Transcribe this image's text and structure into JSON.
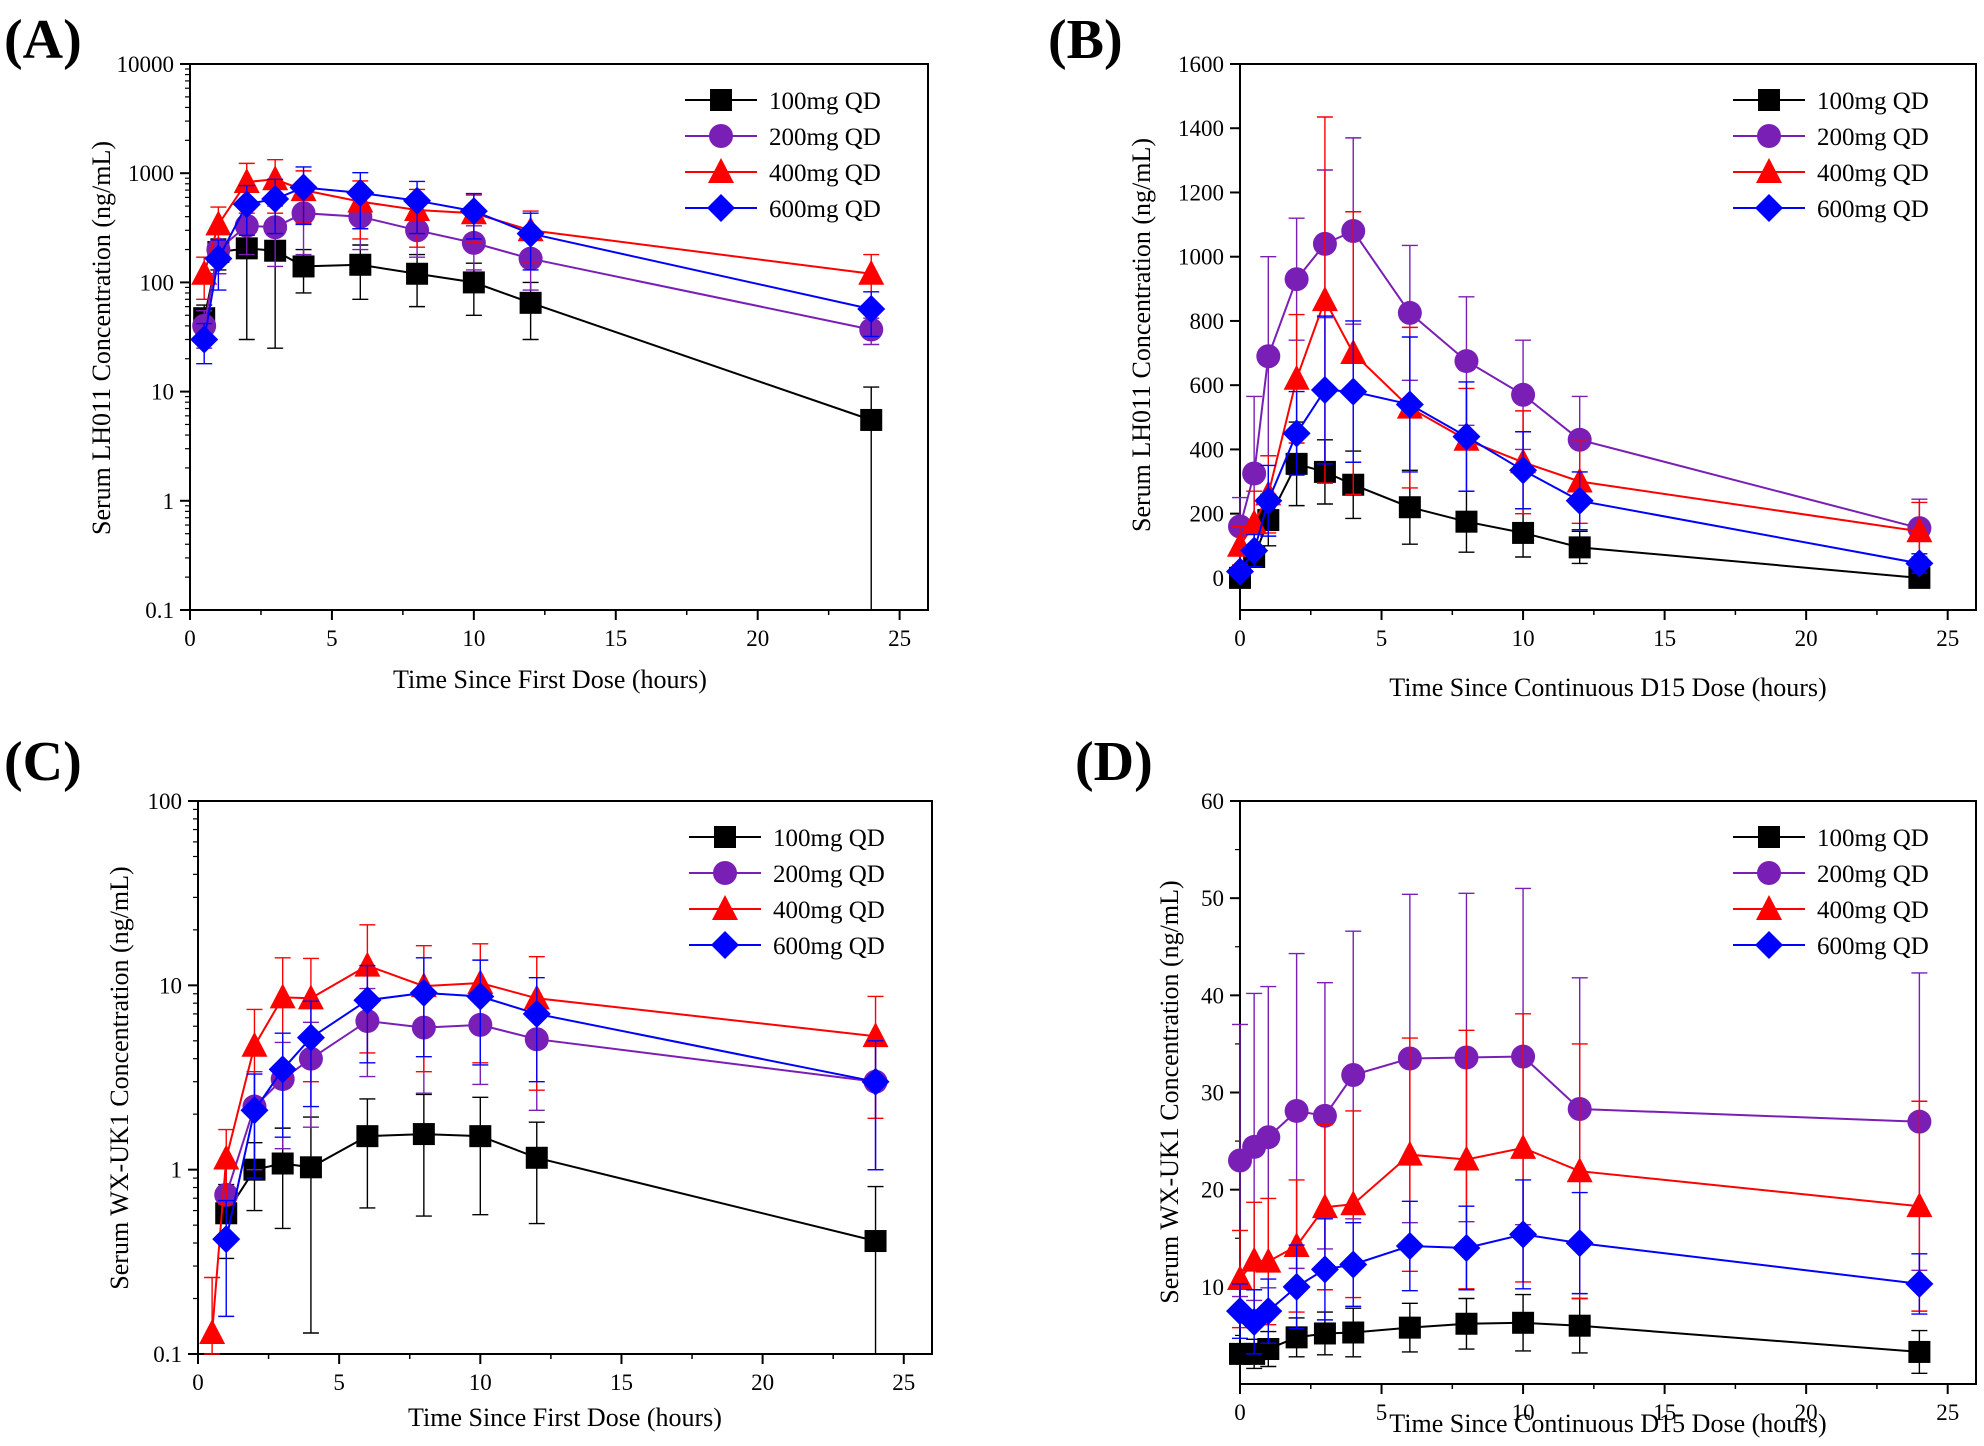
{
  "colors": {
    "100mg QD": "#000000",
    "200mg QD": "#7a1fb5",
    "400mg QD": "#ff0000",
    "600mg QD": "#0000ff"
  },
  "markers": {
    "100mg QD": "square",
    "200mg QD": "circle",
    "400mg QD": "triangle",
    "600mg QD": "diamond"
  },
  "chart_data": [
    {
      "panel": "(A)",
      "type": "line",
      "scale": "log",
      "xlabel": "Time Since First Dose (hours)",
      "ylabel": "Serum LH011 Concentration (ng/mL)",
      "xlim": [
        0,
        26
      ],
      "ylim": [
        0.1,
        10000
      ],
      "xticks": [
        "0",
        "5",
        "10",
        "15",
        "20",
        "25"
      ],
      "yticks": [
        "0.1",
        "1",
        "10",
        "100",
        "1000",
        "10000"
      ],
      "legend_position": "top-right",
      "series": [
        {
          "name": "100mg QD",
          "x": [
            0.5,
            1,
            2,
            3,
            4,
            6,
            8,
            10,
            12,
            24
          ],
          "y": [
            47,
            190,
            205,
            195,
            140,
            145,
            120,
            100,
            65,
            5.5
          ],
          "err": [
            15,
            60,
            175,
            170,
            60,
            75,
            60,
            50,
            35,
            5.5
          ]
        },
        {
          "name": "200mg QD",
          "x": [
            0.5,
            1,
            2,
            3,
            4,
            6,
            8,
            10,
            12,
            24
          ],
          "y": [
            40,
            200,
            330,
            320,
            430,
            400,
            300,
            230,
            165,
            37
          ],
          "err": [
            15,
            80,
            150,
            180,
            250,
            200,
            130,
            100,
            80,
            10
          ]
        },
        {
          "name": "400mg QD",
          "x": [
            0.5,
            1,
            2,
            3,
            4,
            6,
            8,
            10,
            12,
            24
          ],
          "y": [
            120,
            340,
            830,
            880,
            700,
            550,
            460,
            430,
            300,
            120
          ],
          "err": [
            50,
            150,
            400,
            450,
            350,
            300,
            250,
            200,
            150,
            60
          ]
        },
        {
          "name": "600mg QD",
          "x": [
            0.5,
            1,
            2,
            3,
            4,
            6,
            8,
            10,
            12,
            24
          ],
          "y": [
            30,
            165,
            520,
            580,
            740,
            660,
            560,
            450,
            280,
            57
          ],
          "err": [
            12,
            80,
            250,
            300,
            400,
            350,
            280,
            200,
            150,
            25
          ]
        }
      ]
    },
    {
      "panel": "(B)",
      "type": "line",
      "scale": "linear",
      "xlabel": "Time Since Continuous D15 Dose (hours)",
      "ylabel": "Serum LH011 Concentration (ng/mL)",
      "xlim": [
        0,
        26
      ],
      "ylim": [
        -100,
        1600
      ],
      "xticks": [
        "0",
        "5",
        "10",
        "15",
        "20",
        "25"
      ],
      "yticks": [
        "0",
        "200",
        "400",
        "600",
        "800",
        "1000",
        "1200",
        "1400",
        "1600"
      ],
      "legend_position": "top-right",
      "series": [
        {
          "name": "100mg QD",
          "x": [
            0,
            0.5,
            1,
            2,
            3,
            4,
            6,
            8,
            10,
            12,
            24
          ],
          "y": [
            0,
            65,
            180,
            355,
            330,
            290,
            220,
            175,
            140,
            95,
            0
          ],
          "err": [
            0,
            30,
            80,
            130,
            100,
            105,
            115,
            95,
            75,
            50,
            0
          ]
        },
        {
          "name": "200mg QD",
          "x": [
            0,
            0.5,
            1,
            2,
            3,
            4,
            6,
            8,
            10,
            12,
            24
          ],
          "y": [
            160,
            325,
            690,
            930,
            1040,
            1080,
            825,
            675,
            570,
            430,
            155
          ],
          "err": [
            90,
            240,
            310,
            190,
            230,
            290,
            210,
            200,
            170,
            135,
            90
          ]
        },
        {
          "name": "400mg QD",
          "x": [
            0,
            0.5,
            1,
            2,
            3,
            4,
            6,
            8,
            10,
            12,
            24
          ],
          "y": [
            100,
            170,
            260,
            620,
            865,
            700,
            530,
            430,
            360,
            300,
            145
          ],
          "err": [
            60,
            100,
            120,
            200,
            570,
            440,
            250,
            160,
            160,
            130,
            90
          ]
        },
        {
          "name": "600mg QD",
          "x": [
            0,
            0.5,
            1,
            2,
            3,
            4,
            6,
            8,
            10,
            12,
            24
          ],
          "y": [
            20,
            85,
            240,
            450,
            585,
            580,
            540,
            440,
            335,
            240,
            45
          ],
          "err": [
            15,
            50,
            110,
            130,
            230,
            220,
            210,
            170,
            120,
            90,
            30
          ]
        }
      ]
    },
    {
      "panel": "(C)",
      "type": "line",
      "scale": "log",
      "xlabel": "Time Since First Dose (hours)",
      "ylabel": "Serum WX-UK1 Concentration (ng/mL)",
      "xlim": [
        0,
        26
      ],
      "ylim": [
        0.1,
        100
      ],
      "xticks": [
        "0",
        "5",
        "10",
        "15",
        "20",
        "25"
      ],
      "yticks": [
        "0.1",
        "1",
        "10",
        "100"
      ],
      "legend_position": "top-right",
      "series": [
        {
          "name": "100mg QD",
          "x": [
            1,
            2,
            3,
            4,
            6,
            8,
            10,
            12,
            24
          ],
          "y": [
            0.58,
            1.0,
            1.08,
            1.03,
            1.52,
            1.56,
            1.52,
            1.16,
            0.41
          ],
          "err": [
            0.25,
            0.4,
            0.6,
            0.9,
            0.9,
            1.0,
            0.95,
            0.65,
            0.4
          ]
        },
        {
          "name": "200mg QD",
          "x": [
            1,
            2,
            3,
            4,
            6,
            8,
            10,
            12,
            24
          ],
          "y": [
            0.73,
            2.2,
            3.1,
            4.0,
            6.4,
            5.9,
            6.1,
            5.1,
            3.0
          ],
          "err": [
            0.3,
            1.2,
            1.8,
            2.3,
            3.2,
            3.3,
            3.2,
            3.0,
            2.0
          ]
        },
        {
          "name": "400mg QD",
          "x": [
            0.5,
            1,
            2,
            3,
            4,
            6,
            8,
            10,
            12,
            24
          ],
          "y": [
            0.13,
            1.15,
            4.7,
            8.6,
            8.5,
            12.8,
            9.9,
            10.3,
            8.5,
            5.3
          ],
          "err": [
            0.13,
            0.5,
            2.7,
            5.5,
            5.5,
            8.5,
            6.5,
            6.5,
            5.8,
            3.4
          ]
        },
        {
          "name": "600mg QD",
          "x": [
            1,
            2,
            3,
            4,
            6,
            8,
            10,
            12,
            24
          ],
          "y": [
            0.42,
            2.1,
            3.5,
            5.2,
            8.3,
            9.1,
            8.7,
            7.0,
            3.0
          ],
          "err": [
            0.26,
            1.2,
            2.0,
            3.0,
            4.5,
            5.0,
            5.0,
            4.0,
            2.0
          ]
        }
      ]
    },
    {
      "panel": "(D)",
      "type": "line",
      "scale": "linear",
      "xlabel": "Time Since Continuous D15 Dose (hours)",
      "ylabel": "Serum WX-UK1 Concentration (ng/mL)",
      "xlim": [
        0,
        26
      ],
      "ylim": [
        0,
        60
      ],
      "xticks": [
        "0",
        "5",
        "10",
        "15",
        "20",
        "25"
      ],
      "yticks": [
        "10",
        "20",
        "30",
        "40",
        "50",
        "60"
      ],
      "legend_position": "top-right",
      "series": [
        {
          "name": "100mg QD",
          "x": [
            0,
            0.5,
            1,
            2,
            3,
            4,
            6,
            8,
            10,
            12,
            24
          ],
          "y": [
            3.1,
            3.1,
            3.6,
            4.8,
            5.2,
            5.3,
            5.8,
            6.2,
            6.3,
            6.0,
            3.3
          ],
          "err": [
            1.0,
            1.5,
            1.8,
            2.0,
            2.2,
            2.5,
            2.5,
            2.6,
            2.9,
            2.8,
            2.2
          ]
        },
        {
          "name": "200mg QD",
          "x": [
            0,
            0.5,
            1,
            2,
            3,
            4,
            6,
            8,
            10,
            12,
            24
          ],
          "y": [
            23.0,
            24.4,
            25.4,
            28.1,
            27.6,
            31.8,
            33.5,
            33.6,
            33.7,
            28.3,
            27.0
          ],
          "err": [
            14.0,
            15.8,
            15.5,
            16.2,
            13.7,
            14.8,
            16.9,
            16.9,
            17.3,
            13.5,
            15.3
          ]
        },
        {
          "name": "400mg QD",
          "x": [
            0,
            0.5,
            1,
            2,
            3,
            4,
            6,
            8,
            10,
            12,
            24
          ],
          "y": [
            10.8,
            12.7,
            12.6,
            14.2,
            18.2,
            18.5,
            23.6,
            23.1,
            24.3,
            21.9,
            18.3
          ],
          "err": [
            5.0,
            6.0,
            6.5,
            6.8,
            8.5,
            9.6,
            12.0,
            13.3,
            13.8,
            13.1,
            10.8
          ]
        },
        {
          "name": "600mg QD",
          "x": [
            0,
            0.5,
            1,
            2,
            3,
            4,
            6,
            8,
            10,
            12,
            24
          ],
          "y": [
            7.5,
            6.4,
            7.5,
            10.0,
            11.8,
            12.3,
            14.2,
            14.0,
            15.4,
            14.5,
            10.3
          ],
          "err": [
            2.8,
            3.3,
            3.3,
            4.3,
            5.2,
            4.3,
            4.6,
            4.3,
            5.6,
            5.2,
            3.1
          ]
        }
      ]
    }
  ]
}
